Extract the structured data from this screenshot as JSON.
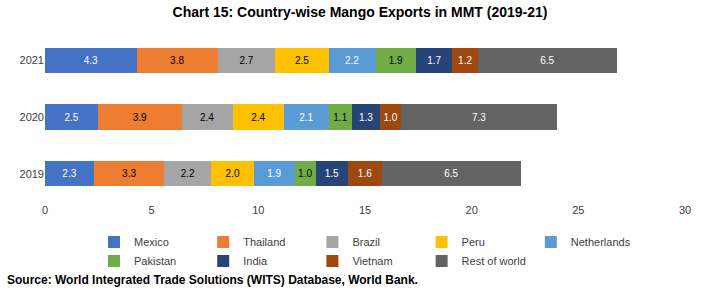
{
  "chart_data": {
    "type": "bar",
    "title": "Chart 15: Country-wise Mango Exports in MMT (2019-21)",
    "source": "Source: World Integrated Trade Solutions (WITS) Database, World Bank.",
    "orientation": "horizontal",
    "stacked": true,
    "data_labels": true,
    "grid": false,
    "legend": "bottom",
    "categories": [
      "2019",
      "2020",
      "2021"
    ],
    "xlim": [
      0,
      30
    ],
    "xticks": [
      0,
      5,
      10,
      15,
      20,
      25,
      30
    ],
    "series": [
      {
        "name": "Mexico",
        "color": "#4472C4",
        "values": [
          2.3,
          2.5,
          4.3
        ]
      },
      {
        "name": "Thailand",
        "color": "#ED7D31",
        "values": [
          3.3,
          3.9,
          3.8
        ]
      },
      {
        "name": "Brazil",
        "color": "#A5A5A5",
        "values": [
          2.2,
          2.4,
          2.7
        ]
      },
      {
        "name": "Peru",
        "color": "#FFC000",
        "values": [
          2.0,
          2.4,
          2.5
        ]
      },
      {
        "name": "Netherlands",
        "color": "#5B9BD5",
        "values": [
          1.9,
          2.1,
          2.2
        ]
      },
      {
        "name": "Pakistan",
        "color": "#70AD47",
        "values": [
          1.0,
          1.1,
          1.9
        ]
      },
      {
        "name": "India",
        "color": "#264478",
        "values": [
          1.5,
          1.3,
          1.7
        ]
      },
      {
        "name": "Vietnam",
        "color": "#9E480E",
        "values": [
          1.6,
          1.0,
          1.2
        ]
      },
      {
        "name": "Rest of world",
        "color": "#636363",
        "values": [
          6.5,
          7.3,
          6.5
        ]
      }
    ]
  }
}
